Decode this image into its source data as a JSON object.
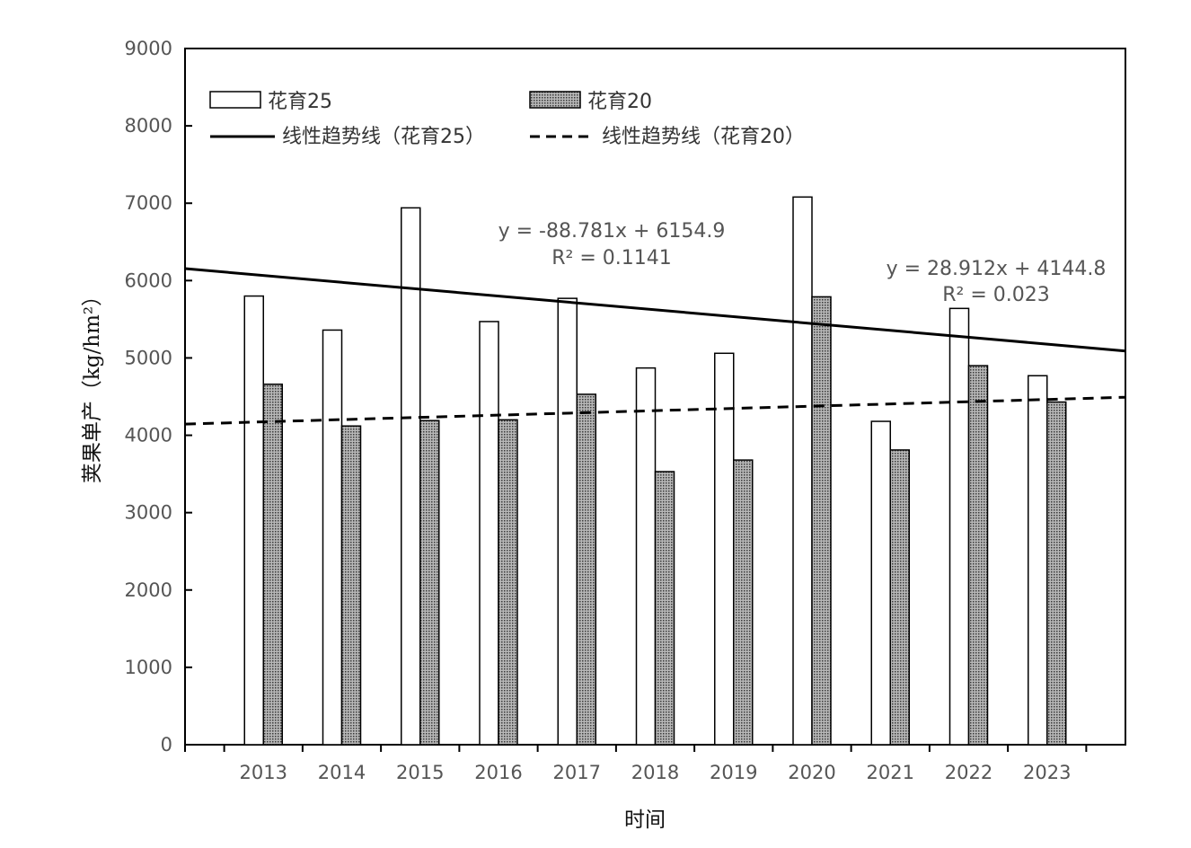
{
  "chart_data": {
    "type": "bar",
    "title": "",
    "xlabel": "时间",
    "ylabel": "荚果单产（kg/hm²）",
    "ylim": [
      0,
      9000
    ],
    "yticks": [
      0,
      1000,
      2000,
      3000,
      4000,
      5000,
      6000,
      7000,
      8000,
      9000
    ],
    "grid": false,
    "legend_position": "top-left",
    "categories": [
      "2013",
      "2014",
      "2015",
      "2016",
      "2017",
      "2018",
      "2019",
      "2020",
      "2021",
      "2022",
      "2023"
    ],
    "series": [
      {
        "name": "花育25",
        "values": [
          5800,
          5360,
          6940,
          5470,
          5770,
          4870,
          5060,
          7080,
          4180,
          5640,
          4770
        ],
        "fill": "#ffffff",
        "pattern": "none"
      },
      {
        "name": "花育20",
        "values": [
          4660,
          4120,
          4190,
          4200,
          4530,
          3530,
          3680,
          5790,
          3810,
          4900,
          4430
        ],
        "fill": "#9a9a9a",
        "pattern": "dotted"
      }
    ],
    "trendlines": [
      {
        "name": "线性趋势线（花育25）",
        "series": "花育25",
        "slope": -88.781,
        "intercept": 6154.9,
        "style": "solid",
        "equation": "y = -88.781x + 6154.9",
        "r2": "R² = 0.1141"
      },
      {
        "name": "线性趋势线（花育20）",
        "series": "花育20",
        "slope": 28.912,
        "intercept": 4144.8,
        "style": "dashed",
        "equation": "y = 28.912x + 4144.8",
        "r2": "R² = 0.023"
      }
    ]
  }
}
